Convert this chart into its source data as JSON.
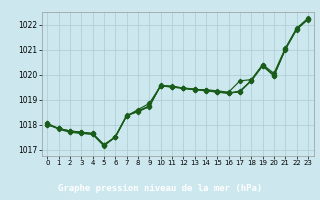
{
  "title": "Graphe pression niveau de la mer (hPa)",
  "bg_color": "#cce8ee",
  "line_color": "#1a5c1a",
  "grid_color": "#b0d0d8",
  "label_bg": "#2d6e2d",
  "label_fg": "#ffffff",
  "ylim": [
    1016.75,
    1022.5
  ],
  "yticks": [
    1017,
    1018,
    1019,
    1020,
    1021,
    1022
  ],
  "xlim": [
    -0.5,
    23.5
  ],
  "xticks": [
    0,
    1,
    2,
    3,
    4,
    5,
    6,
    7,
    8,
    9,
    10,
    11,
    12,
    13,
    14,
    15,
    16,
    17,
    18,
    19,
    20,
    21,
    22,
    23
  ],
  "series": [
    [
      1018.0,
      1017.85,
      1017.75,
      1017.7,
      1017.65,
      1017.2,
      1017.5,
      1018.35,
      1018.6,
      1018.85,
      1019.55,
      1019.55,
      1019.45,
      1019.4,
      1019.4,
      1019.35,
      1019.3,
      1019.75,
      1019.8,
      1020.4,
      1020.05,
      1021.05,
      1021.85,
      1022.25
    ],
    [
      1018.0,
      1017.85,
      1017.75,
      1017.7,
      1017.65,
      1017.2,
      1017.5,
      1018.35,
      1018.55,
      1018.75,
      1019.55,
      1019.5,
      1019.45,
      1019.4,
      1019.35,
      1019.3,
      1019.25,
      1019.35,
      1019.75,
      1020.35,
      1019.95,
      1021.0,
      1021.8,
      1022.2
    ],
    [
      1018.05,
      1017.85,
      1017.72,
      1017.67,
      1017.62,
      1017.17,
      1017.52,
      1018.37,
      1018.52,
      1018.72,
      1019.57,
      1019.52,
      1019.47,
      1019.42,
      1019.37,
      1019.32,
      1019.27,
      1019.32,
      1019.77,
      1020.37,
      1019.97,
      1021.02,
      1021.82,
      1022.22
    ],
    [
      1018.05,
      1017.82,
      1017.7,
      1017.65,
      1017.62,
      1017.15,
      1017.51,
      1018.36,
      1018.53,
      1018.73,
      1019.56,
      1019.51,
      1019.46,
      1019.41,
      1019.36,
      1019.31,
      1019.26,
      1019.31,
      1019.76,
      1020.36,
      1019.96,
      1021.01,
      1021.81,
      1022.21
    ]
  ]
}
